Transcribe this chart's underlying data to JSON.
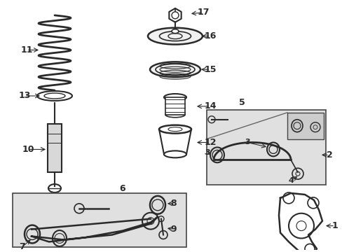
{
  "bg_color": "#ffffff",
  "fig_width": 4.89,
  "fig_height": 3.6,
  "dpi": 100,
  "line_color": "#2a2a2a",
  "box_fill": "#e0e0e0",
  "box_edge": "#444444"
}
